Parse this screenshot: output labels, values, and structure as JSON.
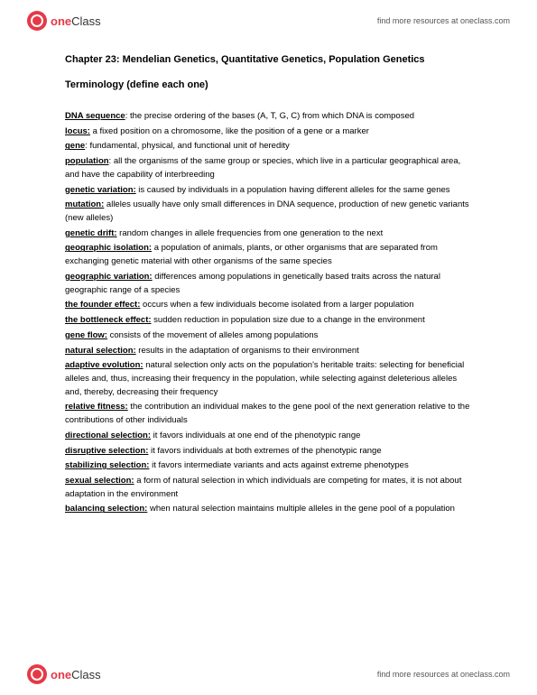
{
  "brand": {
    "one": "one",
    "class": "Class",
    "tagline": "find more resources at oneclass.com"
  },
  "chapter_title": "Chapter 23: Mendelian Genetics, Quantitative Genetics, Population Genetics",
  "section_title": "Terminology (define each one)",
  "terms": [
    {
      "t": "DNA sequence",
      "d": ": the precise ordering of the bases (A, T, G, C) from which DNA is composed"
    },
    {
      "t": "locus:",
      "d": " a fixed position on a chromosome, like the position of a gene or a marker"
    },
    {
      "t": "gene",
      "d": ": fundamental, physical, and functional unit of heredity"
    },
    {
      "t": "population",
      "d": ": all the organisms of the same group or species, which live in a particular geographical area, and have the capability of interbreeding"
    },
    {
      "t": "genetic variation:",
      "d": " is caused by individuals in a population having different alleles for the same genes"
    },
    {
      "t": "mutation:",
      "d": " alleles usually have only small differences in DNA sequence, production of new genetic variants (new alleles)"
    },
    {
      "t": "genetic drift:",
      "d": " random changes in allele frequencies from one generation to the next"
    },
    {
      "t": "geographic isolation:",
      "d": " a population of animals, plants, or other organisms that are separated from exchanging genetic material with other organisms of the same species"
    },
    {
      "t": "geographic variation:",
      "d": " differences among populations in genetically based traits across the natural geographic range of a species"
    },
    {
      "t": "the founder effect:",
      "d": " occurs when a few individuals become isolated from a larger population"
    },
    {
      "t": "the bottleneck effect:",
      "d": " sudden reduction in population size due to a change in the environment"
    },
    {
      "t": "gene flow:",
      "d": " consists of the movement of alleles among populations"
    },
    {
      "t": "natural selection:",
      "d": " results in the adaptation of organisms to their environment"
    },
    {
      "t": "adaptive evolution:",
      "d": " natural selection only acts on the population's heritable traits: selecting for beneficial alleles and, thus, increasing their frequency in the population, while selecting against deleterious alleles and, thereby, decreasing their frequency"
    },
    {
      "t": "relative fitness:",
      "d": " the contribution an individual makes to the gene pool of the next generation relative to the contributions of other individuals"
    },
    {
      "t": "directional selection:",
      "d": " it favors individuals at one end of the phenotypic range"
    },
    {
      "t": "disruptive selection:",
      "d": " it favors individuals at both extremes of the phenotypic range"
    },
    {
      "t": "stabilizing selection:",
      "d": " it favors intermediate variants and acts against extreme phenotypes"
    },
    {
      "t": "sexual selection:",
      "d": " a form of natural selection in which individuals are competing for mates, it is not about adaptation in the environment"
    },
    {
      "t": "balancing selection:",
      "d": " when natural selection maintains multiple alleles in the gene pool of a population"
    }
  ]
}
